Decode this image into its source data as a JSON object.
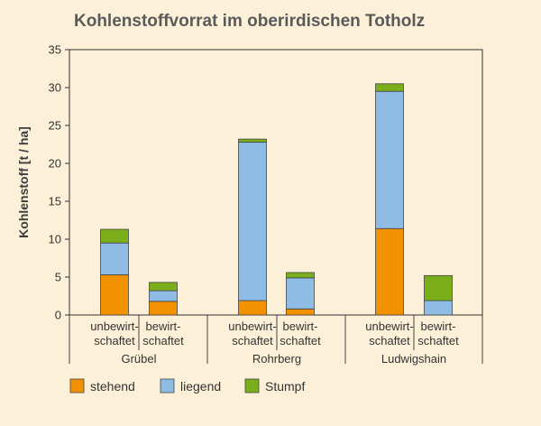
{
  "chart_data": {
    "type": "bar",
    "stacked": true,
    "title": "Kohlenstoffvorrat im oberirdischen Totholz",
    "xlabel": "",
    "ylabel": "Kohlenstoff [t / ha]",
    "ylim": [
      0,
      35
    ],
    "yticks": [
      0,
      5,
      10,
      15,
      20,
      25,
      30,
      35
    ],
    "grid": false,
    "legend_position": "bottom-left",
    "groups": [
      "Grübel",
      "Rohrberg",
      "Ludwigshain"
    ],
    "categories": [
      {
        "line1": "unbewirt-",
        "line2": "schaftet",
        "group": "Grübel"
      },
      {
        "line1": "bewirt-",
        "line2": "schaftet",
        "group": "Grübel"
      },
      {
        "line1": "unbewirt-",
        "line2": "schaftet",
        "group": "Rohrberg"
      },
      {
        "line1": "bewirt-",
        "line2": "schaftet",
        "group": "Rohrberg"
      },
      {
        "line1": "unbewirt-",
        "line2": "schaftet",
        "group": "Ludwigshain"
      },
      {
        "line1": "bewirt-",
        "line2": "schaftet",
        "group": "Ludwigshain"
      }
    ],
    "series": [
      {
        "name": "stehend",
        "color": "#F39200",
        "values": [
          5.3,
          1.8,
          1.9,
          0.8,
          11.4,
          0.0
        ]
      },
      {
        "name": "liegend",
        "color": "#8FBCE4",
        "values": [
          4.2,
          1.4,
          20.9,
          4.1,
          18.1,
          1.9
        ]
      },
      {
        "name": "Stumpf",
        "color": "#7AAE1A",
        "values": [
          1.8,
          1.1,
          0.4,
          0.7,
          1.0,
          3.3
        ]
      }
    ]
  }
}
